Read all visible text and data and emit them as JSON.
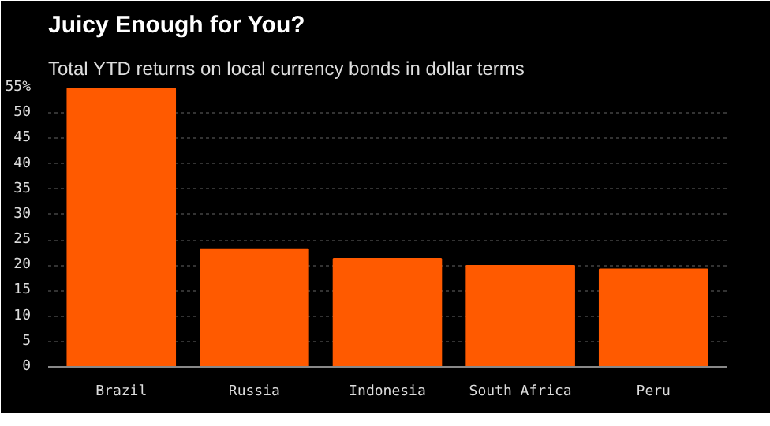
{
  "chart_data": {
    "type": "bar",
    "title": "Juicy Enough for You?",
    "subtitle": "Total YTD returns on local currency bonds in dollar terms",
    "categories": [
      "Brazil",
      "Russia",
      "Indonesia",
      "South Africa",
      "Peru"
    ],
    "values": [
      54.8,
      23.2,
      21.3,
      19.9,
      19.2
    ],
    "color": "#ff5a00",
    "ylim": [
      0,
      55
    ],
    "yticks": [
      0,
      5,
      10,
      15,
      20,
      25,
      30,
      35,
      40,
      45,
      50,
      {
        "value": 55,
        "label": "55%"
      }
    ],
    "grid": "y"
  }
}
